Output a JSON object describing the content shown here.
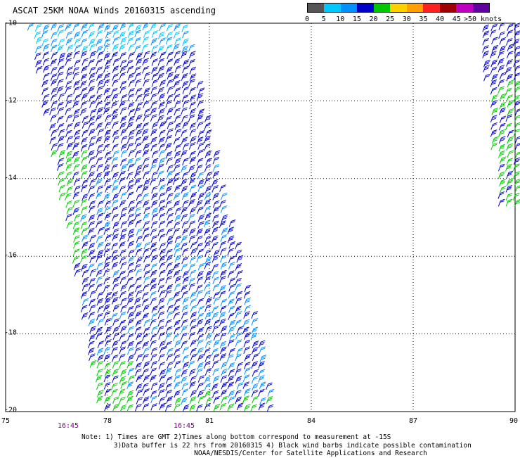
{
  "title": "ASCAT 25KM NOAA Winds 20160315 ascending",
  "legend": {
    "labels": [
      "0",
      "5",
      "10",
      "15",
      "20",
      "25",
      "30",
      "35",
      "40",
      "45",
      ">50 knots"
    ],
    "colors": [
      "#555555",
      "#00c8ff",
      "#0090ff",
      "#0000c8",
      "#00c800",
      "#ffd000",
      "#ffa000",
      "#ff2020",
      "#a00000",
      "#c000c0",
      "#6000a0"
    ]
  },
  "map": {
    "lat_labels": [
      "-10",
      "-12",
      "-14",
      "-16",
      "-18",
      "-20"
    ],
    "lon_labels": [
      "75",
      "78",
      "81",
      "84",
      "87",
      "90"
    ],
    "time_labels": [
      "16:45",
      "16:45"
    ],
    "grid": true
  },
  "notes": {
    "line1": "Note: 1) Times are GMT 2)Times along bottom correspond to measurement at -15S",
    "line2": "3)Data buffer is 22 hrs from 20160315 4) Black wind barbs indicate possible contamination",
    "line3": "NOAA/NESDIS/Center for Satellite Applications and Research"
  },
  "swaths": [
    {
      "name": "main-swath",
      "corners": [
        [
          75.7,
          -10.0
        ],
        [
          80.3,
          -10.0
        ],
        [
          83.0,
          -20.0
        ],
        [
          77.8,
          -20.0
        ]
      ]
    },
    {
      "name": "east-swath",
      "corners": [
        [
          88.9,
          -10.0
        ],
        [
          90.2,
          -10.0
        ],
        [
          90.2,
          -14.8
        ],
        [
          89.6,
          -14.8
        ]
      ]
    }
  ]
}
